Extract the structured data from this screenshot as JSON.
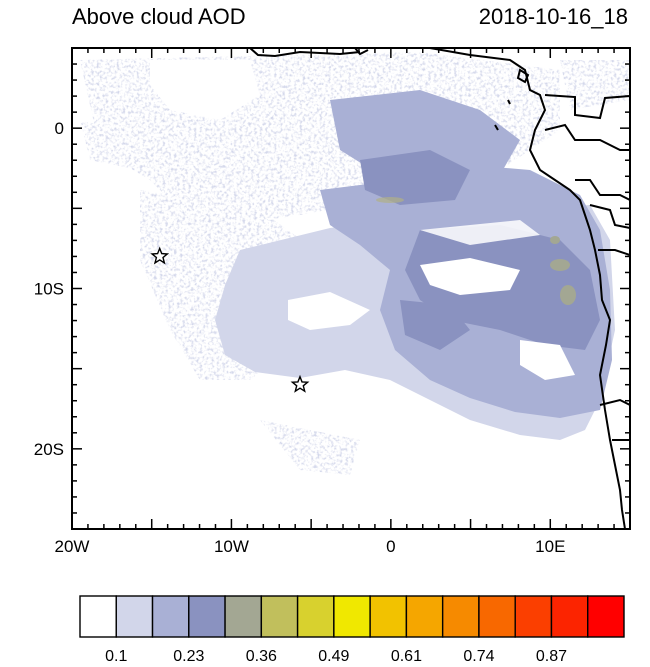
{
  "header": {
    "title": "Above cloud AOD",
    "timestamp": "2018-10-16_18"
  },
  "map": {
    "lon_range": [
      -20,
      15
    ],
    "lat_range": [
      -25,
      5
    ],
    "lat_ticks": [
      {
        "value": 0,
        "label": "0"
      },
      {
        "value": -10,
        "label": "10S"
      },
      {
        "value": -20,
        "label": "20S"
      }
    ],
    "lon_ticks": [
      {
        "value": -20,
        "label": "20W"
      },
      {
        "value": -10,
        "label": "10W"
      },
      {
        "value": 0,
        "label": "0"
      },
      {
        "value": 10,
        "label": "10E"
      }
    ],
    "markers": [
      {
        "name": "star-marker-1",
        "lon": -14.5,
        "lat": -8.0
      },
      {
        "name": "star-marker-2",
        "lon": -5.7,
        "lat": -16.0
      }
    ]
  },
  "colorbar": {
    "colors": [
      "#ffffff",
      "#d2d6ea",
      "#a9b0d5",
      "#8a92c0",
      "#a3a793",
      "#c1bf5c",
      "#d8d12e",
      "#f0e800",
      "#f2c200",
      "#f5a600",
      "#f68a00",
      "#f86800",
      "#fb3f00",
      "#fc2400",
      "#ff0000"
    ],
    "labels": [
      "0.1",
      "0.23",
      "0.36",
      "0.49",
      "0.61",
      "0.74",
      "0.87"
    ]
  }
}
